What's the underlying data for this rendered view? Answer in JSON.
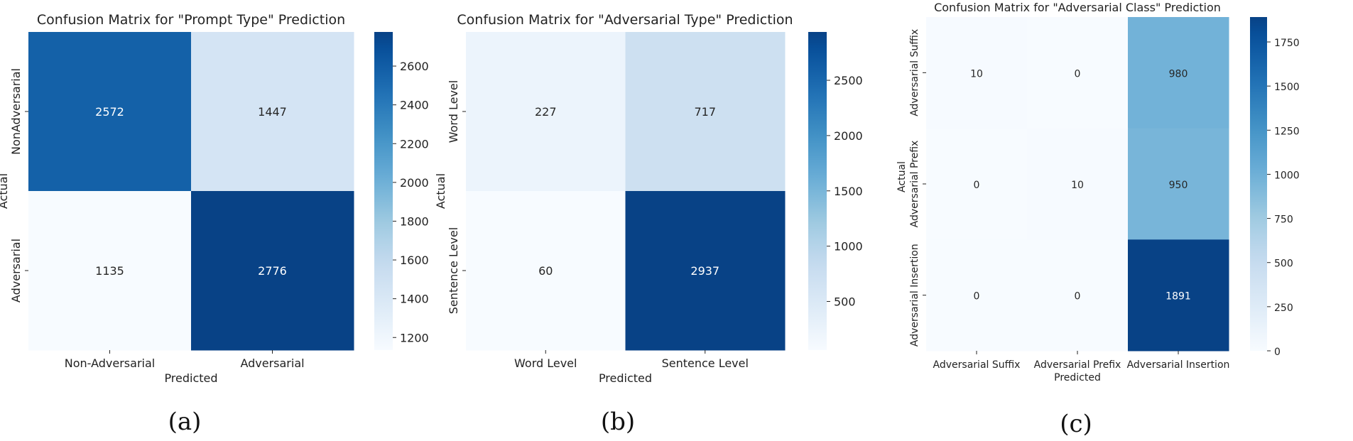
{
  "chart_data": [
    {
      "type": "heatmap",
      "title": "Confusion Matrix for \"Prompt Type\" Prediction",
      "xlabel": "Predicted",
      "ylabel": "Actual",
      "x_categories": [
        "Non-Adversarial",
        "Adversarial"
      ],
      "y_categories": [
        "NonAdversarial",
        "Adversarial"
      ],
      "values": [
        [
          2572,
          1447
        ],
        [
          1135,
          2776
        ]
      ],
      "colorbar": {
        "min": 1135,
        "max": 2776,
        "ticks": [
          1200,
          1400,
          1600,
          1800,
          2000,
          2200,
          2400,
          2600
        ]
      },
      "colormap": "Blues",
      "subfigure_label": "(a)"
    },
    {
      "type": "heatmap",
      "title": "Confusion Matrix for \"Adversarial Type\" Prediction",
      "xlabel": "Predicted",
      "ylabel": "Actual",
      "x_categories": [
        "Word Level",
        "Sentence Level"
      ],
      "y_categories": [
        "Word Level",
        "Sentence Level"
      ],
      "values": [
        [
          227,
          717
        ],
        [
          60,
          2937
        ]
      ],
      "colorbar": {
        "min": 60,
        "max": 2937,
        "ticks": [
          500,
          1000,
          1500,
          2000,
          2500
        ]
      },
      "colormap": "Blues",
      "subfigure_label": "(b)"
    },
    {
      "type": "heatmap",
      "title": "Confusion Matrix for \"Adversarial Class\" Prediction",
      "xlabel": "Predicted",
      "ylabel": "Actual",
      "x_categories": [
        "Adversarial Suffix",
        "Adversarial Prefix",
        "Adversarial Insertion"
      ],
      "y_categories": [
        "Adversarial Suffix",
        "Adversarial Prefix",
        "Adversarial Insertion"
      ],
      "values": [
        [
          10,
          0,
          980
        ],
        [
          0,
          10,
          950
        ],
        [
          0,
          0,
          1891
        ]
      ],
      "colorbar": {
        "min": 0,
        "max": 1891,
        "ticks": [
          0,
          250,
          500,
          750,
          1000,
          1250,
          1500,
          1750
        ]
      },
      "colormap": "Blues",
      "subfigure_label": "(c)"
    }
  ]
}
